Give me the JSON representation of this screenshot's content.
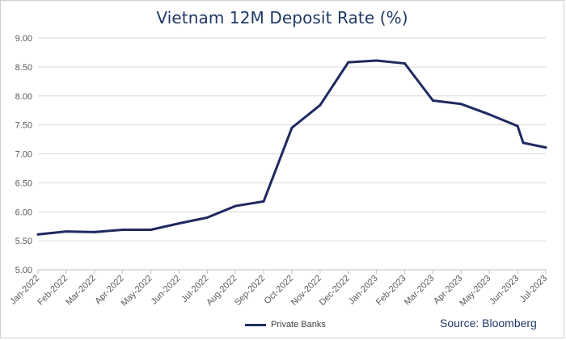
{
  "chart_data": {
    "type": "line",
    "title": "Vietnam 12M Deposit Rate (%)",
    "xlabel": "",
    "ylabel": "",
    "ylim": [
      5.0,
      9.0
    ],
    "y_ticks": [
      "5.00",
      "5.50",
      "6.00",
      "6.50",
      "7.00",
      "7.50",
      "8.00",
      "8.50",
      "9.00"
    ],
    "grid": true,
    "legend_position": "bottom",
    "categories": [
      "Jan-2022",
      "Feb-2022",
      "Mar-2022",
      "Apr-2022",
      "May-2022",
      "Jun-2022",
      "Jul-2022",
      "Aug-2022",
      "Sep-2022",
      "Oct-2022",
      "Nov-2022",
      "Dec-2022",
      "Jan-2023",
      "Feb-2023",
      "Mar-2023",
      "Apr-2023",
      "May-2023",
      "Jun-2023",
      "Jul-2023"
    ],
    "series": [
      {
        "name": "Private Banks",
        "color": "#1f2a60",
        "points": [
          {
            "x": 0.0,
            "y": 5.61
          },
          {
            "x": 1.0,
            "y": 5.66
          },
          {
            "x": 2.0,
            "y": 5.65
          },
          {
            "x": 3.0,
            "y": 5.69
          },
          {
            "x": 4.0,
            "y": 5.69
          },
          {
            "x": 5.0,
            "y": 5.8
          },
          {
            "x": 6.0,
            "y": 5.9
          },
          {
            "x": 7.0,
            "y": 6.1
          },
          {
            "x": 8.0,
            "y": 6.18
          },
          {
            "x": 9.0,
            "y": 7.45
          },
          {
            "x": 10.0,
            "y": 7.84
          },
          {
            "x": 11.0,
            "y": 8.58
          },
          {
            "x": 12.0,
            "y": 8.61
          },
          {
            "x": 13.0,
            "y": 8.56
          },
          {
            "x": 14.0,
            "y": 7.92
          },
          {
            "x": 15.0,
            "y": 7.86
          },
          {
            "x": 16.0,
            "y": 7.68
          },
          {
            "x": 17.0,
            "y": 7.48
          },
          {
            "x": 17.2,
            "y": 7.19
          },
          {
            "x": 18.0,
            "y": 7.11
          }
        ]
      }
    ],
    "source_note": "Source: Bloomberg"
  }
}
